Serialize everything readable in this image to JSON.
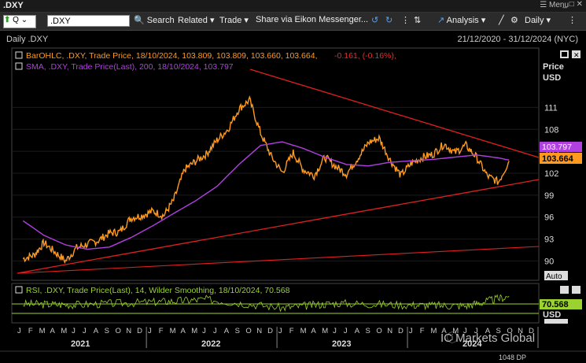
{
  "window": {
    "title": ".DXY",
    "menu_label": "Menu"
  },
  "toolbar": {
    "ric_value": ".DXY",
    "search_label": "Search",
    "related_label": "Related",
    "trade_label": "Trade",
    "share_label": "Share via Eikon Messenger...",
    "analysis_label": "Analysis",
    "interval_label": "Daily"
  },
  "chart_header": {
    "subtitle": "Daily .DXY",
    "date_range": "21/12/2020 - 31/12/2024 (NYC)"
  },
  "legend": {
    "ohlc": "BarOHLC, .DXY, Trade Price,  18/10/2024, 103.809, 103.809, 103.660, 103.664,",
    "ohlc_change": " -0.161, (-0.16%),",
    "sma": "SMA, .DXY, Trade Price(Last),  200,  18/10/2024, 103.797",
    "rsi": "RSI, .DXY, Trade Price(Last),  14, Wilder Smoothing,  18/10/2024, 70.568"
  },
  "axis": {
    "price_label": "Price",
    "currency_label": "USD",
    "auto_label": "Auto",
    "rsi_currency_label": "USD",
    "rsi_auto_label": "Auto"
  },
  "badges": {
    "sma_value": "103.797",
    "last_price": "103.664",
    "rsi_value": "70.568"
  },
  "watermark": "IC Markets Global",
  "footer_text": "1048 DP",
  "colors": {
    "price": "#ff9a1f",
    "sma": "#b040e0",
    "trendline": "#e02020",
    "rsi": "#9ad230",
    "up": "#4caf50",
    "down": "#e03030"
  },
  "chart_data": {
    "type": "line",
    "title": "Daily .DXY",
    "y_ticks": [
      90,
      93,
      96,
      99,
      102,
      105,
      108,
      111
    ],
    "ylim": [
      88,
      116
    ],
    "months": [
      "J",
      "F",
      "M",
      "A",
      "M",
      "J",
      "J",
      "A",
      "S",
      "O",
      "N",
      "D",
      "J",
      "F",
      "M",
      "A",
      "M",
      "J",
      "J",
      "A",
      "S",
      "O",
      "N",
      "D",
      "J",
      "F",
      "M",
      "A",
      "M",
      "J",
      "J",
      "A",
      "S",
      "O",
      "N",
      "D",
      "J",
      "F",
      "M",
      "A",
      "M",
      "J",
      "J",
      "A",
      "S",
      "O",
      "N",
      "D"
    ],
    "years": [
      "2021",
      "2022",
      "2023",
      "2024"
    ],
    "series": [
      {
        "name": "BarOHLC .DXY",
        "x": [
          "2021-01",
          "2021-02",
          "2021-03",
          "2021-04",
          "2021-05",
          "2021-06",
          "2021-07",
          "2021-08",
          "2021-09",
          "2021-10",
          "2021-11",
          "2021-12",
          "2022-01",
          "2022-02",
          "2022-03",
          "2022-04",
          "2022-05",
          "2022-06",
          "2022-07",
          "2022-08",
          "2022-09",
          "2022-10",
          "2022-11",
          "2022-12",
          "2023-01",
          "2023-02",
          "2023-03",
          "2023-04",
          "2023-05",
          "2023-06",
          "2023-07",
          "2023-08",
          "2023-09",
          "2023-10",
          "2023-11",
          "2023-12",
          "2024-01",
          "2024-02",
          "2024-03",
          "2024-04",
          "2024-05",
          "2024-06",
          "2024-07",
          "2024-08",
          "2024-09",
          "2024-10"
        ],
        "values": [
          90.3,
          90.8,
          92.5,
          91.2,
          90.0,
          91.8,
          92.3,
          92.8,
          93.8,
          94.0,
          95.9,
          96.2,
          96.8,
          96.2,
          98.3,
          102.5,
          103.6,
          104.6,
          106.5,
          108.0,
          110.8,
          112.0,
          107.5,
          104.3,
          102.1,
          104.8,
          102.5,
          101.7,
          104.2,
          102.9,
          101.9,
          104.0,
          106.2,
          106.8,
          103.8,
          101.7,
          103.4,
          104.2,
          104.6,
          106.0,
          104.8,
          105.8,
          104.2,
          101.6,
          100.8,
          103.664
        ]
      },
      {
        "name": "SMA 200",
        "x": [
          "2021-01",
          "2021-03",
          "2021-05",
          "2021-07",
          "2021-09",
          "2021-11",
          "2022-01",
          "2022-03",
          "2022-05",
          "2022-07",
          "2022-09",
          "2022-11",
          "2023-01",
          "2023-03",
          "2023-05",
          "2023-07",
          "2023-09",
          "2023-11",
          "2024-01",
          "2024-03",
          "2024-05",
          "2024-07",
          "2024-09",
          "2024-10"
        ],
        "values": [
          95.5,
          93.5,
          92.2,
          91.6,
          91.9,
          93.2,
          94.8,
          96.5,
          98.2,
          100.2,
          103.2,
          105.8,
          106.3,
          105.4,
          104.2,
          103.2,
          103.0,
          103.5,
          103.7,
          103.9,
          104.2,
          104.5,
          104.1,
          103.797
        ]
      },
      {
        "name": "RSI 14",
        "x": [
          "2021-01",
          "2021-06",
          "2022-01",
          "2022-06",
          "2023-01",
          "2023-06",
          "2024-01",
          "2024-06",
          "2024-10"
        ],
        "values": [
          50,
          48,
          55,
          62,
          40,
          52,
          47,
          45,
          70.568
        ]
      }
    ],
    "annotations": [
      "Upper trendline",
      "Lower trendlines"
    ]
  }
}
